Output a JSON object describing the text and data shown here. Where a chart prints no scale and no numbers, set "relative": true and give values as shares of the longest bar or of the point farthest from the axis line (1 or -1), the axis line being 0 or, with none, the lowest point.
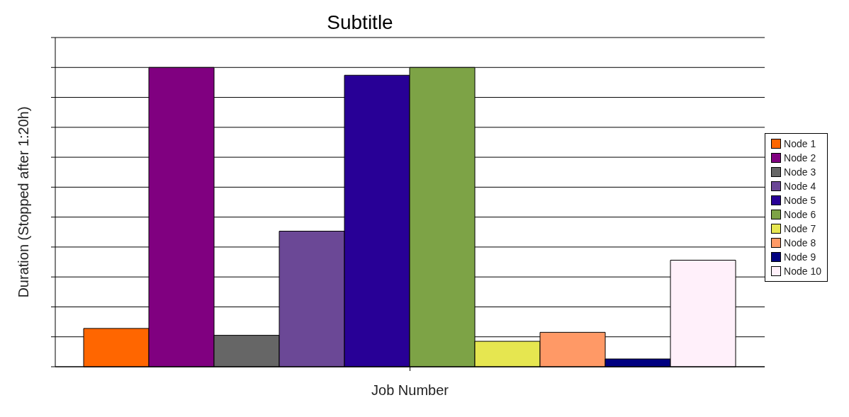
{
  "chart_data": {
    "type": "bar",
    "subtitle": "Subtitle",
    "xlabel": "Job Number",
    "ylabel": "Duration (Stopped after 1:20h)",
    "categories": [
      null
    ],
    "relative": true,
    "grid": "y",
    "legend": "right",
    "series": [
      {
        "name": "Node 1",
        "color": "#ff6600",
        "values": [
          0.128
        ]
      },
      {
        "name": "Node 2",
        "color": "#800080",
        "values": [
          1
        ]
      },
      {
        "name": "Node 3",
        "color": "#666666",
        "values": [
          0.105
        ]
      },
      {
        "name": "Node 4",
        "color": "#6b4896",
        "values": [
          0.453
        ]
      },
      {
        "name": "Node 5",
        "color": "#280096",
        "values": [
          0.974
        ]
      },
      {
        "name": "Node 6",
        "color": "#7da346",
        "values": [
          1
        ]
      },
      {
        "name": "Node 7",
        "color": "#e6e650",
        "values": [
          0.085
        ]
      },
      {
        "name": "Node 8",
        "color": "#ff9966",
        "values": [
          0.115
        ]
      },
      {
        "name": "Node 9",
        "color": "#000080",
        "values": [
          0.026
        ]
      },
      {
        "name": "Node 10",
        "color": "#fff0fa",
        "values": [
          0.356
        ]
      }
    ]
  }
}
